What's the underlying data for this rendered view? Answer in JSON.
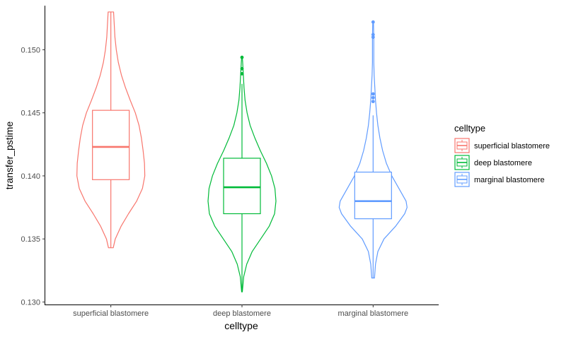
{
  "chart_data": {
    "type": "violin+box",
    "title": "",
    "xlabel": "celltype",
    "ylabel": "transfer_pstime",
    "ylim": [
      0.1298,
      0.1535
    ],
    "yticks": [
      0.13,
      0.135,
      0.14,
      0.145,
      0.15
    ],
    "ytick_labels": [
      "0.130",
      "0.135",
      "0.140",
      "0.145",
      "0.150"
    ],
    "grid": false,
    "legend": {
      "title": "celltype",
      "position": "right"
    },
    "categories": [
      "superficial blastomere",
      "deep blastomere",
      "marginal blastomere"
    ],
    "series": [
      {
        "name": "superficial blastomere",
        "color": "#F8766D",
        "box": {
          "whisker_low": 0.1343,
          "q1": 0.1397,
          "median": 0.1423,
          "q3": 0.1452,
          "whisker_high": 0.153
        },
        "outliers": [],
        "violin": {
          "min": 0.1343,
          "max": 0.153,
          "profile": [
            [
              0.1343,
              0.07
            ],
            [
              0.135,
              0.13
            ],
            [
              0.136,
              0.3
            ],
            [
              0.137,
              0.52
            ],
            [
              0.138,
              0.76
            ],
            [
              0.139,
              0.93
            ],
            [
              0.14,
              1.0
            ],
            [
              0.141,
              0.99
            ],
            [
              0.142,
              0.95
            ],
            [
              0.143,
              0.9
            ],
            [
              0.144,
              0.83
            ],
            [
              0.145,
              0.72
            ],
            [
              0.146,
              0.57
            ],
            [
              0.147,
              0.43
            ],
            [
              0.148,
              0.31
            ],
            [
              0.149,
              0.22
            ],
            [
              0.15,
              0.16
            ],
            [
              0.151,
              0.12
            ],
            [
              0.152,
              0.1
            ],
            [
              0.153,
              0.08
            ]
          ]
        }
      },
      {
        "name": "deep blastomere",
        "color": "#00BA38",
        "box": {
          "whisker_low": 0.1308,
          "q1": 0.137,
          "median": 0.1391,
          "q3": 0.1414,
          "whisker_high": 0.1473
        },
        "outliers": [
          0.1481,
          0.1485,
          0.1494
        ],
        "violin": {
          "min": 0.1308,
          "max": 0.1494,
          "profile": [
            [
              0.1308,
              0.01
            ],
            [
              0.132,
              0.05
            ],
            [
              0.133,
              0.14
            ],
            [
              0.134,
              0.3
            ],
            [
              0.135,
              0.55
            ],
            [
              0.136,
              0.8
            ],
            [
              0.137,
              0.96
            ],
            [
              0.138,
              1.0
            ],
            [
              0.139,
              0.97
            ],
            [
              0.14,
              0.87
            ],
            [
              0.141,
              0.72
            ],
            [
              0.142,
              0.54
            ],
            [
              0.143,
              0.38
            ],
            [
              0.144,
              0.24
            ],
            [
              0.145,
              0.15
            ],
            [
              0.146,
              0.09
            ],
            [
              0.147,
              0.06
            ],
            [
              0.148,
              0.04
            ],
            [
              0.149,
              0.02
            ],
            [
              0.1494,
              0.01
            ]
          ]
        }
      },
      {
        "name": "marginal blastomere",
        "color": "#619CFF",
        "box": {
          "whisker_low": 0.1319,
          "q1": 0.1366,
          "median": 0.138,
          "q3": 0.1403,
          "whisker_high": 0.1448
        },
        "outliers": [
          0.1459,
          0.1462,
          0.1465,
          0.151,
          0.1512,
          0.1522
        ],
        "violin": {
          "min": 0.1319,
          "max": 0.1522,
          "profile": [
            [
              0.1319,
              0.04
            ],
            [
              0.133,
              0.07
            ],
            [
              0.134,
              0.14
            ],
            [
              0.135,
              0.32
            ],
            [
              0.136,
              0.66
            ],
            [
              0.137,
              0.93
            ],
            [
              0.1375,
              1.0
            ],
            [
              0.138,
              0.97
            ],
            [
              0.139,
              0.76
            ],
            [
              0.14,
              0.55
            ],
            [
              0.141,
              0.39
            ],
            [
              0.142,
              0.28
            ],
            [
              0.143,
              0.2
            ],
            [
              0.144,
              0.14
            ],
            [
              0.145,
              0.1
            ],
            [
              0.146,
              0.07
            ],
            [
              0.147,
              0.05
            ],
            [
              0.148,
              0.03
            ],
            [
              0.149,
              0.02
            ],
            [
              0.15,
              0.02
            ],
            [
              0.151,
              0.02
            ],
            [
              0.1522,
              0.01
            ]
          ]
        }
      }
    ]
  }
}
